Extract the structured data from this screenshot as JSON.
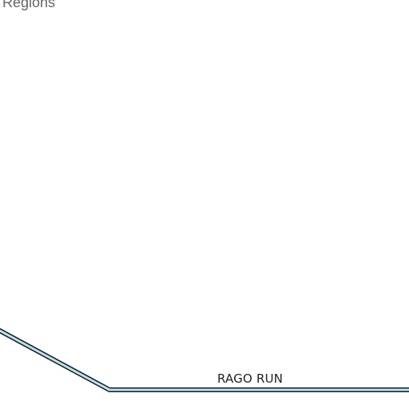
{
  "map": {
    "region_label": "l Regions",
    "stream": {
      "name": "RAGO RUN",
      "water_color": "#b7e3f5",
      "outline_color": "#1a1a1a"
    },
    "background_color": "#ffffff"
  }
}
